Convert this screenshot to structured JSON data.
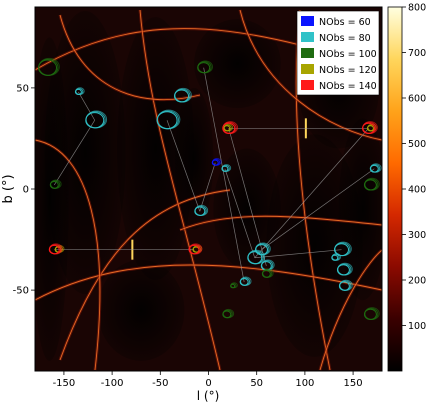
{
  "chart_data": {
    "type": "scatter",
    "title": "",
    "xlabel": "l (°)",
    "ylabel": "b (°)",
    "xlim": [
      -180,
      180
    ],
    "ylim": [
      -90,
      90
    ],
    "xticks": [
      -150,
      -100,
      -50,
      0,
      50,
      100,
      150
    ],
    "yticks": [
      50,
      0,
      -50
    ],
    "background": "sky density map with dark elliptical voids and bright arcs",
    "colorbar": {
      "min": 0,
      "max": 800,
      "ticks": [
        100,
        200,
        300,
        400,
        500,
        600,
        700,
        800
      ],
      "colormap": "hot",
      "colors": [
        "#000000",
        "#3a0000",
        "#8b0a00",
        "#d42800",
        "#ff6a00",
        "#ffa31a",
        "#ffd65c",
        "#ffffe0"
      ]
    },
    "legend": {
      "placement": "top-right",
      "entries": [
        {
          "label": "NObs = 60",
          "color": "#0a14ff"
        },
        {
          "label": "NObs = 80",
          "color": "#30c2c8"
        },
        {
          "label": "NObs = 100",
          "color": "#1e6b10"
        },
        {
          "label": "NObs = 120",
          "color": "#a8a500"
        },
        {
          "label": "NObs = 140",
          "color": "#ff1a1a"
        }
      ]
    },
    "series": [
      {
        "name": "NObs = 60",
        "color": "#0a14ff",
        "points": [
          {
            "x": 7,
            "y": 13,
            "r": 3
          }
        ]
      },
      {
        "name": "NObs = 80",
        "color": "#30c2c8",
        "points": [
          {
            "x": -135,
            "y": 48,
            "r": 3
          },
          {
            "x": -118,
            "y": 34,
            "r": 9
          },
          {
            "x": -43,
            "y": 34,
            "r": 10
          },
          {
            "x": -28,
            "y": 46,
            "r": 7
          },
          {
            "x": -9,
            "y": -11,
            "r": 5
          },
          {
            "x": 17,
            "y": 10,
            "r": 3
          },
          {
            "x": 48,
            "y": -34,
            "r": 7
          },
          {
            "x": 55,
            "y": -30,
            "r": 6
          },
          {
            "x": 60,
            "y": -38,
            "r": 5
          },
          {
            "x": 37,
            "y": -46,
            "r": 4
          },
          {
            "x": 138,
            "y": -30,
            "r": 7
          },
          {
            "x": 141,
            "y": -48,
            "r": 5
          },
          {
            "x": 131,
            "y": -34,
            "r": 3
          },
          {
            "x": 172,
            "y": 10,
            "r": 4
          },
          {
            "x": 140,
            "y": -40,
            "r": 6
          }
        ]
      },
      {
        "name": "NObs = 100",
        "color": "#1e6b10",
        "points": [
          {
            "x": -167,
            "y": 60,
            "r": 9
          },
          {
            "x": -160,
            "y": 2,
            "r": 4
          },
          {
            "x": -5,
            "y": 60,
            "r": 6
          },
          {
            "x": 19,
            "y": -62,
            "r": 4
          },
          {
            "x": 168,
            "y": 2,
            "r": 6
          },
          {
            "x": 168,
            "y": -62,
            "r": 6
          },
          {
            "x": 25,
            "y": -48,
            "r": 2
          },
          {
            "x": 60,
            "y": -42,
            "r": 4
          }
        ]
      },
      {
        "name": "NObs = 120",
        "color": "#a8a500",
        "points": [
          {
            "x": -156,
            "y": -30,
            "r": 3
          },
          {
            "x": -13,
            "y": -30,
            "r": 3
          },
          {
            "x": 19,
            "y": 30,
            "r": 3
          },
          {
            "x": 168,
            "y": 30,
            "r": 3
          }
        ]
      },
      {
        "name": "NObs = 140",
        "color": "#ff1a1a",
        "points": [
          {
            "x": -160,
            "y": -30,
            "r": 5
          },
          {
            "x": -15,
            "y": -30,
            "r": 5
          },
          {
            "x": 21,
            "y": 30,
            "r": 6
          },
          {
            "x": 166,
            "y": 30,
            "r": 6
          }
        ]
      }
    ],
    "connections": [
      [
        [
          -160,
          -30
        ],
        [
          -15,
          -30
        ]
      ],
      [
        [
          21,
          30
        ],
        [
          166,
          30
        ]
      ],
      [
        [
          -135,
          48
        ],
        [
          -118,
          34
        ]
      ],
      [
        [
          -118,
          34
        ],
        [
          -160,
          2
        ]
      ],
      [
        [
          -43,
          34
        ],
        [
          -9,
          -11
        ]
      ],
      [
        [
          -9,
          -11
        ],
        [
          7,
          13
        ]
      ],
      [
        [
          17,
          10
        ],
        [
          48,
          -34
        ]
      ],
      [
        [
          48,
          -34
        ],
        [
          138,
          -30
        ]
      ],
      [
        [
          -5,
          60
        ],
        [
          37,
          -46
        ]
      ],
      [
        [
          21,
          30
        ],
        [
          60,
          -38
        ]
      ],
      [
        [
          55,
          -30
        ],
        [
          172,
          10
        ]
      ],
      [
        [
          166,
          30
        ],
        [
          48,
          -34
        ]
      ]
    ]
  }
}
